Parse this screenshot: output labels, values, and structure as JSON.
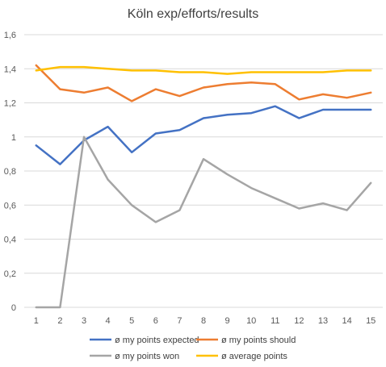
{
  "chart_data": {
    "type": "line",
    "title": "Köln exp/efforts/results",
    "xlabel": "",
    "ylabel": "",
    "categories": [
      "1",
      "2",
      "3",
      "4",
      "5",
      "6",
      "7",
      "8",
      "9",
      "10",
      "11",
      "12",
      "13",
      "14",
      "15"
    ],
    "ylim": [
      0,
      1.6
    ],
    "yticks": [
      "0",
      "0,2",
      "0,4",
      "0,6",
      "0,8",
      "1",
      "1,2",
      "1,4",
      "1,6"
    ],
    "ytick_values": [
      0,
      0.2,
      0.4,
      0.6,
      0.8,
      1.0,
      1.2,
      1.4,
      1.6
    ],
    "grid": true,
    "legend_position": "bottom",
    "series": [
      {
        "name": "ø my points expected",
        "color": "#4472C4",
        "values": [
          0.95,
          0.84,
          0.98,
          1.06,
          0.91,
          1.02,
          1.04,
          1.11,
          1.13,
          1.14,
          1.18,
          1.11,
          1.16,
          1.16,
          1.16
        ]
      },
      {
        "name": "ø my points should",
        "color": "#ED7D31",
        "values": [
          1.42,
          1.28,
          1.26,
          1.29,
          1.21,
          1.28,
          1.24,
          1.29,
          1.31,
          1.32,
          1.31,
          1.22,
          1.25,
          1.23,
          1.26
        ]
      },
      {
        "name": "ø my points won",
        "color": "#A5A5A5",
        "values": [
          0.0,
          0.0,
          1.0,
          0.75,
          0.6,
          0.5,
          0.57,
          0.87,
          0.78,
          0.7,
          0.64,
          0.58,
          0.61,
          0.57,
          0.73
        ]
      },
      {
        "name": "ø average points",
        "color": "#FFC000",
        "values": [
          1.39,
          1.41,
          1.41,
          1.4,
          1.39,
          1.39,
          1.38,
          1.38,
          1.37,
          1.38,
          1.38,
          1.38,
          1.38,
          1.39,
          1.39
        ]
      }
    ]
  }
}
